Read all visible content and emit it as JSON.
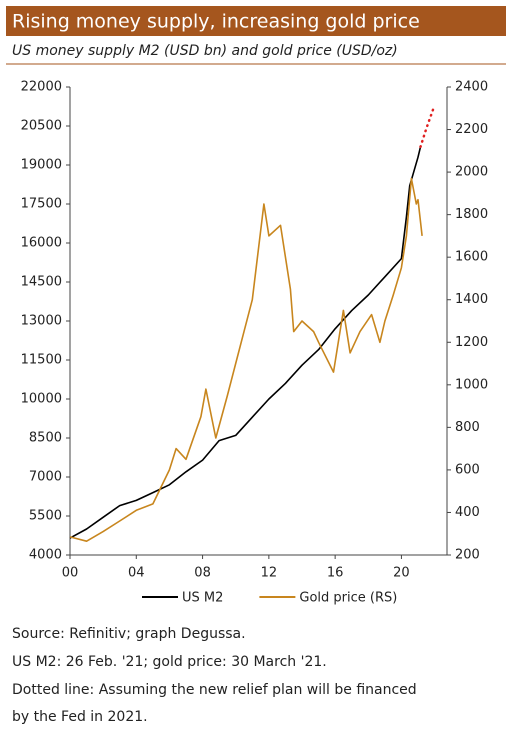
{
  "chart_data": {
    "type": "line",
    "title": "Rising money supply, increasing gold price",
    "subtitle": "US money supply M2 (USD bn) and gold price (USD/oz)",
    "xlim": [
      2000,
      2022.75
    ],
    "xticks": [
      {
        "value": 2000,
        "label": "00"
      },
      {
        "value": 2004,
        "label": "04"
      },
      {
        "value": 2008,
        "label": "08"
      },
      {
        "value": 2012,
        "label": "12"
      },
      {
        "value": 2016,
        "label": "16"
      },
      {
        "value": 2020,
        "label": "20"
      }
    ],
    "ylim": [
      4000,
      22000
    ],
    "yticks": [
      4000,
      5500,
      7000,
      8500,
      10000,
      11500,
      13000,
      14500,
      16000,
      17500,
      19000,
      20500,
      22000
    ],
    "y2lim": [
      200,
      2400
    ],
    "y2ticks": [
      200,
      400,
      600,
      800,
      1000,
      1200,
      1400,
      1600,
      1800,
      2000,
      2200,
      2400
    ],
    "grid": false,
    "series": [
      {
        "name": "US M2",
        "color": "#000000",
        "x": [
          2000,
          2001,
          2002,
          2003,
          2004,
          2005,
          2006,
          2007,
          2008,
          2009,
          2010,
          2011,
          2012,
          2013,
          2014,
          2015,
          2016,
          2017,
          2018,
          2019,
          2020,
          2020.3,
          2020.5,
          2021,
          2021.15
        ],
        "values": [
          4650,
          5000,
          5450,
          5900,
          6100,
          6400,
          6700,
          7200,
          7650,
          8400,
          8600,
          9300,
          10000,
          10600,
          11300,
          11900,
          12700,
          13400,
          14000,
          14700,
          15400,
          17000,
          18200,
          19300,
          19700
        ]
      },
      {
        "name": "Gold price (RS)",
        "color": "#c8861e",
        "axis": "y2",
        "x": [
          2000,
          2001,
          2002,
          2003,
          2004,
          2005,
          2006,
          2006.4,
          2007,
          2007.9,
          2008.2,
          2008.8,
          2009.5,
          2010,
          2010.5,
          2011,
          2011.7,
          2012,
          2012.7,
          2013.3,
          2013.5,
          2014,
          2014.7,
          2015,
          2015.9,
          2016.5,
          2016.9,
          2017.5,
          2018.2,
          2018.7,
          2019,
          2019.5,
          2020,
          2020.3,
          2020.6,
          2020.9,
          2021,
          2021.25
        ],
        "values": [
          285,
          265,
          310,
          360,
          410,
          440,
          600,
          700,
          650,
          850,
          980,
          750,
          950,
          1100,
          1250,
          1400,
          1850,
          1700,
          1750,
          1450,
          1250,
          1300,
          1250,
          1200,
          1060,
          1350,
          1150,
          1250,
          1330,
          1200,
          1300,
          1420,
          1550,
          1700,
          1970,
          1850,
          1870,
          1700
        ]
      },
      {
        "color": "#e02020",
        "dash": "dotted",
        "x": [
          2021.15,
          2021.5,
          2022
        ],
        "values": [
          19700,
          20400,
          21300
        ]
      }
    ],
    "notes": [
      "Source: Refinitiv; graph Degussa.",
      "US M2: 26 Feb. '21; gold price: 30 March '21.",
      "Dotted line: Assuming the new relief plan will be financed",
      "by the Fed in 2021."
    ]
  }
}
